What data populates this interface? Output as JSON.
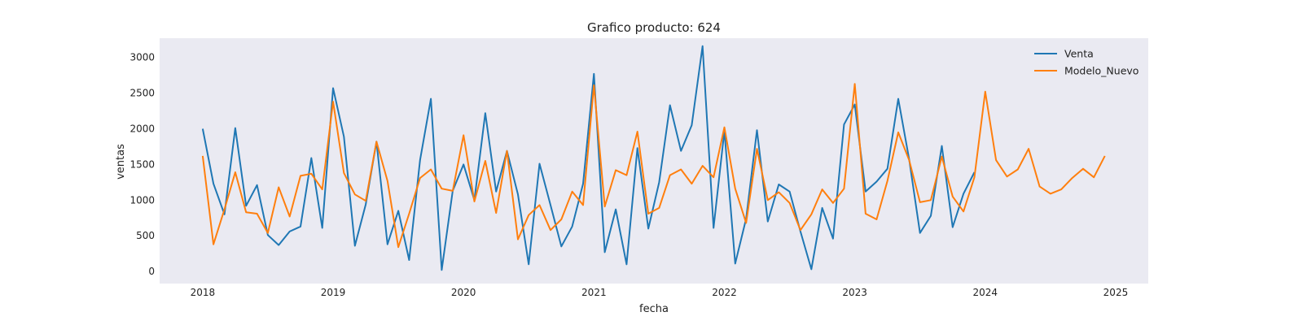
{
  "chart_data": {
    "type": "line",
    "title": "Grafico producto: 624",
    "xlabel": "fecha",
    "ylabel": "ventas",
    "xlim": [
      2017.67,
      2025.25
    ],
    "ylim": [
      -170,
      3270
    ],
    "xticks": [
      2018,
      2019,
      2020,
      2021,
      2022,
      2023,
      2024,
      2025
    ],
    "yticks": [
      0,
      500,
      1000,
      1500,
      2000,
      2500,
      3000
    ],
    "grid": false,
    "background": "#eaeaf2",
    "legend_position": "top-right",
    "series": [
      {
        "name": "Venta",
        "color": "#1f77b4",
        "x": [
          2018.0,
          2018.083,
          2018.167,
          2018.25,
          2018.333,
          2018.417,
          2018.5,
          2018.583,
          2018.667,
          2018.75,
          2018.833,
          2018.917,
          2019.0,
          2019.083,
          2019.167,
          2019.25,
          2019.333,
          2019.417,
          2019.5,
          2019.583,
          2019.667,
          2019.75,
          2019.833,
          2019.917,
          2020.0,
          2020.083,
          2020.167,
          2020.25,
          2020.333,
          2020.417,
          2020.5,
          2020.583,
          2020.667,
          2020.75,
          2020.833,
          2020.917,
          2021.0,
          2021.083,
          2021.167,
          2021.25,
          2021.333,
          2021.417,
          2021.5,
          2021.583,
          2021.667,
          2021.75,
          2021.833,
          2021.917,
          2022.0,
          2022.083,
          2022.167,
          2022.25,
          2022.333,
          2022.417,
          2022.5,
          2022.583,
          2022.667,
          2022.75,
          2022.833,
          2022.917,
          2023.0,
          2023.083,
          2023.167,
          2023.25,
          2023.333,
          2023.417,
          2023.5,
          2023.583,
          2023.667,
          2023.75,
          2023.833,
          2023.917
        ],
        "y": [
          2000,
          1230,
          800,
          2010,
          920,
          1210,
          510,
          370,
          560,
          630,
          1590,
          610,
          2570,
          1890,
          360,
          940,
          1820,
          380,
          850,
          160,
          1560,
          2420,
          20,
          1130,
          1500,
          1000,
          2220,
          1120,
          1690,
          1080,
          100,
          1510,
          930,
          350,
          630,
          1230,
          2770,
          270,
          870,
          100,
          1730,
          600,
          1250,
          2330,
          1690,
          2050,
          3160,
          610,
          1970,
          110,
          740,
          1980,
          700,
          1220,
          1120,
          560,
          30,
          890,
          460,
          2060,
          2340,
          1120,
          1260,
          1440,
          2420,
          1570,
          540,
          780,
          1760,
          620,
          1090,
          1390
        ]
      },
      {
        "name": "Modelo_Nuevo",
        "color": "#ff7f0e",
        "x": [
          2018.0,
          2018.083,
          2018.167,
          2018.25,
          2018.333,
          2018.417,
          2018.5,
          2018.583,
          2018.667,
          2018.75,
          2018.833,
          2018.917,
          2019.0,
          2019.083,
          2019.167,
          2019.25,
          2019.333,
          2019.417,
          2019.5,
          2019.583,
          2019.667,
          2019.75,
          2019.833,
          2019.917,
          2020.0,
          2020.083,
          2020.167,
          2020.25,
          2020.333,
          2020.417,
          2020.5,
          2020.583,
          2020.667,
          2020.75,
          2020.833,
          2020.917,
          2021.0,
          2021.083,
          2021.167,
          2021.25,
          2021.333,
          2021.417,
          2021.5,
          2021.583,
          2021.667,
          2021.75,
          2021.833,
          2021.917,
          2022.0,
          2022.083,
          2022.167,
          2022.25,
          2022.333,
          2022.417,
          2022.5,
          2022.583,
          2022.667,
          2022.75,
          2022.833,
          2022.917,
          2023.0,
          2023.083,
          2023.167,
          2023.25,
          2023.333,
          2023.417,
          2023.5,
          2023.583,
          2023.667,
          2023.75,
          2023.833,
          2023.917,
          2024.0,
          2024.083,
          2024.167,
          2024.25,
          2024.333,
          2024.417,
          2024.5,
          2024.583,
          2024.667,
          2024.75,
          2024.833,
          2024.917
        ],
        "y": [
          1620,
          380,
          870,
          1390,
          830,
          810,
          540,
          1180,
          770,
          1340,
          1370,
          1150,
          2380,
          1380,
          1080,
          990,
          1820,
          1270,
          340,
          810,
          1310,
          1430,
          1160,
          1130,
          1910,
          980,
          1550,
          820,
          1690,
          450,
          790,
          930,
          580,
          730,
          1120,
          930,
          2610,
          910,
          1420,
          1350,
          1960,
          810,
          890,
          1350,
          1430,
          1230,
          1480,
          1320,
          2020,
          1160,
          680,
          1720,
          1000,
          1110,
          960,
          580,
          800,
          1150,
          960,
          1160,
          2630,
          810,
          730,
          1270,
          1950,
          1560,
          970,
          1000,
          1610,
          1050,
          840,
          1320,
          2520,
          1560,
          1330,
          1430,
          1720,
          1190,
          1090,
          1150,
          1310,
          1440,
          1320,
          1620
        ]
      }
    ]
  }
}
